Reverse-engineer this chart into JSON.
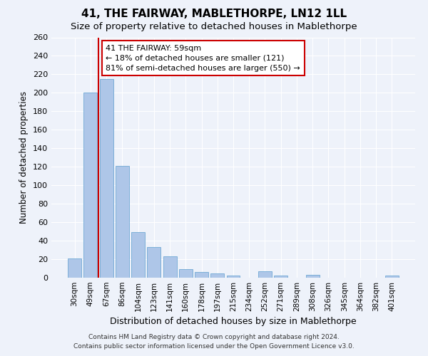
{
  "title": "41, THE FAIRWAY, MABLETHORPE, LN12 1LL",
  "subtitle": "Size of property relative to detached houses in Mablethorpe",
  "xlabel": "Distribution of detached houses by size in Mablethorpe",
  "ylabel": "Number of detached properties",
  "categories": [
    "30sqm",
    "49sqm",
    "67sqm",
    "86sqm",
    "104sqm",
    "123sqm",
    "141sqm",
    "160sqm",
    "178sqm",
    "197sqm",
    "215sqm",
    "234sqm",
    "252sqm",
    "271sqm",
    "289sqm",
    "308sqm",
    "326sqm",
    "345sqm",
    "364sqm",
    "382sqm",
    "401sqm"
  ],
  "values": [
    21,
    200,
    215,
    121,
    49,
    33,
    23,
    9,
    6,
    5,
    2,
    0,
    7,
    2,
    0,
    3,
    0,
    0,
    0,
    0,
    2
  ],
  "bar_color": "#aec6e8",
  "bar_edge_color": "#6fa8d4",
  "vline_x": 1.5,
  "vline_color": "#cc0000",
  "annotation_text": "41 THE FAIRWAY: 59sqm\n← 18% of detached houses are smaller (121)\n81% of semi-detached houses are larger (550) →",
  "annotation_box_color": "white",
  "annotation_box_edge": "#cc0000",
  "ylim": [
    0,
    260
  ],
  "yticks": [
    0,
    20,
    40,
    60,
    80,
    100,
    120,
    140,
    160,
    180,
    200,
    220,
    240,
    260
  ],
  "footer_line1": "Contains HM Land Registry data © Crown copyright and database right 2024.",
  "footer_line2": "Contains public sector information licensed under the Open Government Licence v3.0.",
  "bg_color": "#eef2fa",
  "plot_bg_color": "#eef2fa",
  "title_fontsize": 11,
  "subtitle_fontsize": 9.5,
  "xlabel_fontsize": 9,
  "ylabel_fontsize": 8.5,
  "tick_fontsize": 8,
  "footer_fontsize": 6.5
}
